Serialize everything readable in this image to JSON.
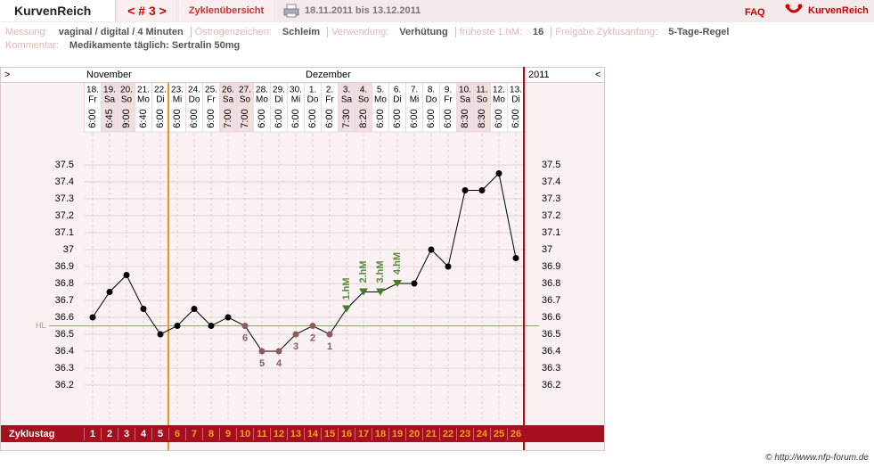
{
  "header": {
    "brand": "KurvenReich",
    "cycle_nav": "< # 3 >",
    "overview": "Zyklenübersicht",
    "date_range": "18.11.2011 bis 13.12.2011",
    "faq": "FAQ",
    "logo_text": "KurvenReich"
  },
  "info": {
    "fields": [
      {
        "label": "Messung:",
        "value": "vaginal / digital / 4 Minuten"
      },
      {
        "label": "Östrogenzeichen:",
        "value": "Schleim"
      },
      {
        "label": "Verwendung:",
        "value": "Verhütung"
      },
      {
        "label": "früheste 1.hM:",
        "value": "16"
      },
      {
        "label": "Freigabe Zyklusanfang:",
        "value": "5-Tage-Regel"
      }
    ],
    "comment": {
      "label": "Kommentar:",
      "value": "Medikamente täglich: Sertralin 50mg"
    }
  },
  "chart_data": {
    "type": "line",
    "color": "#000000",
    "grid": true,
    "nav_left": ">",
    "nav_right": "<",
    "months": [
      "November",
      "Dezember"
    ],
    "year": "2011",
    "categories": [
      "18.",
      "19.",
      "20.",
      "21.",
      "22.",
      "23.",
      "24.",
      "25.",
      "26.",
      "27.",
      "28.",
      "29.",
      "30.",
      "1.",
      "2.",
      "3.",
      "4.",
      "5.",
      "6.",
      "7.",
      "8.",
      "9.",
      "10.",
      "11.",
      "12.",
      "13."
    ],
    "weekdays": [
      "Fr",
      "Sa",
      "So",
      "Mo",
      "Di",
      "Mi",
      "Do",
      "Fr",
      "Sa",
      "So",
      "Mo",
      "Di",
      "Mi",
      "Do",
      "Fr",
      "Sa",
      "So",
      "Mo",
      "Di",
      "Mi",
      "Do",
      "Fr",
      "Sa",
      "So",
      "Mo",
      "Di"
    ],
    "times": [
      "6:00",
      "6:45",
      "9:00",
      "6:40",
      "6:00",
      "6:00",
      "6:00",
      "6:00",
      "7:00",
      "7:00",
      "6:00",
      "6:00",
      "6:00",
      "6:00",
      "6:00",
      "7:30",
      "8:20",
      "6:00",
      "6:00",
      "6:00",
      "6:00",
      "6:00",
      "8:30",
      "8:30",
      "6:00",
      "6:00"
    ],
    "values": [
      36.6,
      36.75,
      36.85,
      36.65,
      36.5,
      36.55,
      36.65,
      36.55,
      36.6,
      36.55,
      36.4,
      36.4,
      36.5,
      36.55,
      36.5,
      36.65,
      36.75,
      36.75,
      36.8,
      36.8,
      37.0,
      36.9,
      37.35,
      37.35,
      37.45,
      36.95
    ],
    "low_labels": [
      null,
      null,
      null,
      null,
      null,
      null,
      null,
      null,
      null,
      6,
      5,
      4,
      3,
      2,
      1,
      null,
      null,
      null,
      null,
      null,
      null,
      null,
      null,
      null,
      null,
      null
    ],
    "hm_labels": [
      null,
      null,
      null,
      null,
      null,
      null,
      null,
      null,
      null,
      null,
      null,
      null,
      null,
      null,
      null,
      "1.hM",
      "2.hM",
      "3.hM",
      "4.hM",
      null,
      null,
      null,
      null,
      null,
      null,
      null
    ],
    "ylim": [
      36.1,
      37.7
    ],
    "yticks": [
      36.2,
      36.3,
      36.4,
      36.5,
      36.6,
      36.7,
      36.8,
      36.9,
      37,
      37.1,
      37.2,
      37.3,
      37.4,
      37.5
    ],
    "hl_label": "HL",
    "hl_value": 36.55,
    "cycle_label": "Zyklustag",
    "cycle_days": [
      1,
      2,
      3,
      4,
      5,
      6,
      7,
      8,
      9,
      10,
      11,
      12,
      13,
      14,
      15,
      16,
      17,
      18,
      19,
      20,
      21,
      22,
      23,
      24,
      25,
      26
    ]
  },
  "footer": "© http://www.nfp-forum.de"
}
